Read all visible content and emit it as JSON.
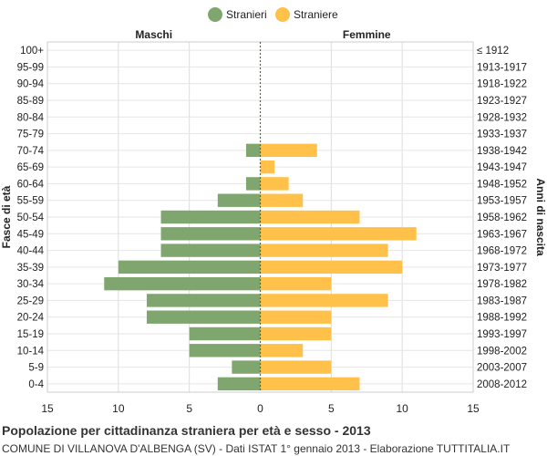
{
  "legend": {
    "items": [
      {
        "label": "Stranieri",
        "color": "#7ea66e"
      },
      {
        "label": "Straniere",
        "color": "#ffc14a"
      }
    ]
  },
  "chart_data": {
    "type": "bar",
    "orientation": "horizontal-population-pyramid",
    "left_header": "Maschi",
    "right_header": "Femmine",
    "ylabel_left": "Fasce di età",
    "ylabel_right": "Anni di nascita",
    "xlim": [
      -15,
      15
    ],
    "x_ticks": [
      -15,
      -10,
      -5,
      0,
      5,
      10,
      15
    ],
    "x_tick_labels": [
      "15",
      "10",
      "5",
      "0",
      "5",
      "10",
      "15"
    ],
    "grid": true,
    "legend_position": "top-center",
    "categories": [
      "100+",
      "95-99",
      "90-94",
      "85-89",
      "80-84",
      "75-79",
      "70-74",
      "65-69",
      "60-64",
      "55-59",
      "50-54",
      "45-49",
      "40-44",
      "35-39",
      "30-34",
      "25-29",
      "20-24",
      "15-19",
      "10-14",
      "5-9",
      "0-4"
    ],
    "birth_years": [
      "≤ 1912",
      "1913-1917",
      "1918-1922",
      "1923-1927",
      "1928-1932",
      "1933-1937",
      "1938-1942",
      "1943-1947",
      "1948-1952",
      "1953-1957",
      "1958-1962",
      "1963-1967",
      "1968-1972",
      "1973-1977",
      "1978-1982",
      "1983-1987",
      "1988-1992",
      "1993-1997",
      "1998-2002",
      "2003-2007",
      "2008-2012"
    ],
    "series": [
      {
        "name": "Stranieri",
        "color": "#7ea66e",
        "values": [
          0,
          0,
          0,
          0,
          0,
          0,
          1,
          0,
          1,
          3,
          7,
          7,
          7,
          10,
          11,
          8,
          8,
          5,
          5,
          2,
          3
        ]
      },
      {
        "name": "Straniere",
        "color": "#ffc14a",
        "values": [
          0,
          0,
          0,
          0,
          0,
          0,
          4,
          1,
          2,
          3,
          7,
          11,
          9,
          10,
          5,
          9,
          5,
          5,
          3,
          5,
          7
        ]
      }
    ]
  },
  "footer": {
    "title": "Popolazione per cittadinanza straniera per età e sesso - 2013",
    "subtitle": "COMUNE DI VILLANOVA D'ALBENGA (SV) - Dati ISTAT 1° gennaio 2013 - Elaborazione TUTTITALIA.IT"
  }
}
